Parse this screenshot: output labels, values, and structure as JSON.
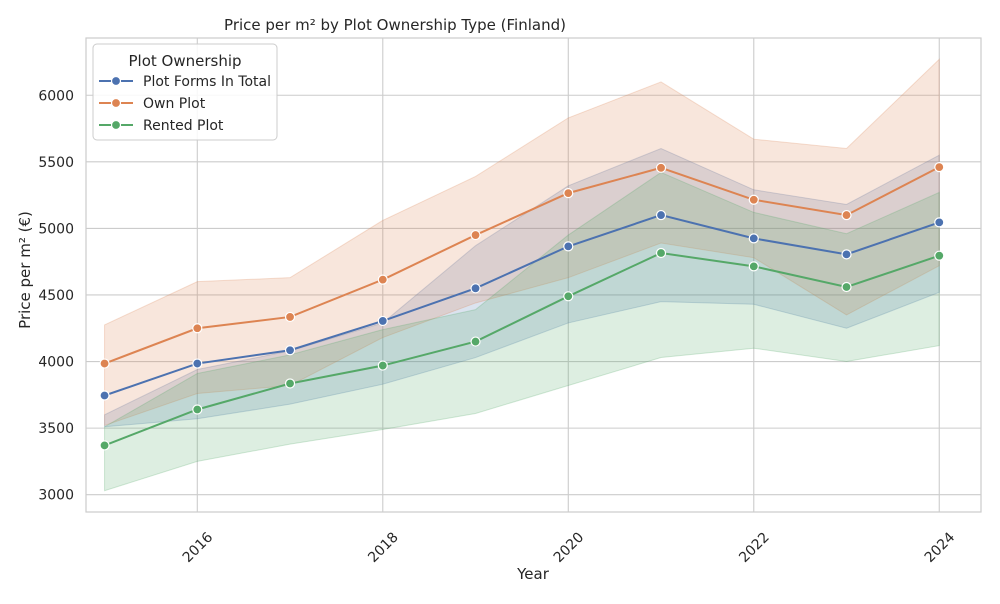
{
  "chart_data": {
    "type": "line",
    "title": "Price per m² by Plot Ownership Type (Finland)",
    "xlabel": "Year",
    "ylabel": "Price per m² (€)",
    "x": [
      2015,
      2016,
      2017,
      2018,
      2019,
      2020,
      2021,
      2022,
      2023,
      2024
    ],
    "xlim": [
      2014.8,
      2024.45
    ],
    "ylim": [
      2870,
      6430
    ],
    "xticks": [
      2016,
      2018,
      2020,
      2022,
      2024
    ],
    "xtick_labels": [
      "2016",
      "2018",
      "2020",
      "2022",
      "2024"
    ],
    "yticks": [
      3000,
      3500,
      4000,
      4500,
      5000,
      5500,
      6000
    ],
    "ytick_labels": [
      "3000",
      "3500",
      "4000",
      "4500",
      "5000",
      "5500",
      "6000"
    ],
    "grid": true,
    "legend": {
      "title": "Plot Ownership",
      "position": "top-left"
    },
    "series": [
      {
        "name": "Plot Forms In Total",
        "color": "#4c72b0",
        "values": [
          3745,
          3985,
          4085,
          4305,
          4550,
          4865,
          5100,
          4925,
          4805,
          5045
        ],
        "lower": [
          3510,
          3570,
          3680,
          3830,
          4030,
          4290,
          4450,
          4430,
          4250,
          4520
        ],
        "upper": [
          3600,
          3940,
          4080,
          4290,
          4870,
          5320,
          5600,
          5290,
          5180,
          5550
        ]
      },
      {
        "name": "Own Plot",
        "color": "#dd8452",
        "values": [
          3985,
          4250,
          4335,
          4615,
          4950,
          5265,
          5455,
          5215,
          5100,
          5460
        ],
        "lower": [
          3520,
          3760,
          3820,
          4180,
          4440,
          4630,
          4890,
          4780,
          4350,
          4720
        ],
        "upper": [
          4275,
          4600,
          4630,
          5060,
          5390,
          5830,
          6100,
          5670,
          5600,
          6270
        ]
      },
      {
        "name": "Rented Plot",
        "color": "#55a868",
        "values": [
          3370,
          3640,
          3835,
          3970,
          4150,
          4490,
          4815,
          4715,
          4560,
          4795
        ],
        "lower": [
          3030,
          3250,
          3380,
          3490,
          3610,
          3820,
          4030,
          4100,
          4000,
          4120
        ],
        "upper": [
          3510,
          3910,
          4050,
          4240,
          4390,
          4950,
          5420,
          5120,
          4960,
          5270
        ]
      }
    ]
  }
}
